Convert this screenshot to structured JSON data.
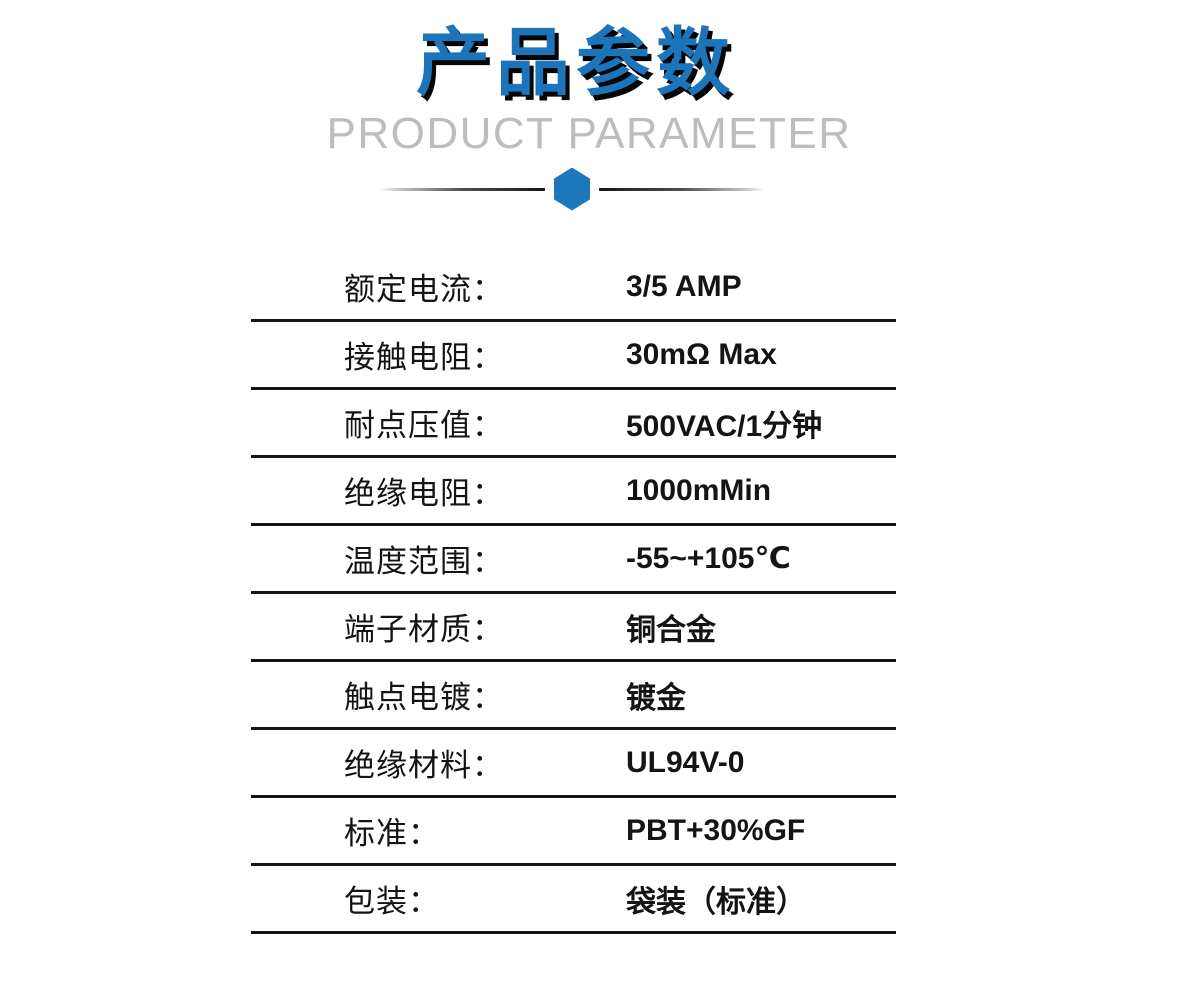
{
  "page": {
    "title_cn": "产品参数",
    "title_en": "PRODUCT PARAMETER"
  },
  "colors": {
    "accent_blue": "#1c74ba",
    "title_shadow": "#050505",
    "subtitle_gray": "#bdbdbd",
    "table_line": "#141414",
    "text": "#141414"
  },
  "icons": {
    "divider_hexagon": "blue pointy-top hexagon between fading rule lines"
  },
  "table": {
    "rows": [
      {
        "label": "额定电流：",
        "value": "3/5 AMP"
      },
      {
        "label": "接触电阻：",
        "value": "30mΩ Max"
      },
      {
        "label": "耐点压值：",
        "value": "500VAC/1分钟"
      },
      {
        "label": "绝缘电阻：",
        "value": "1000mMin"
      },
      {
        "label": "温度范围：",
        "value": "-55~+105℃"
      },
      {
        "label": "端子材质：",
        "value": "铜合金"
      },
      {
        "label": "触点电镀：",
        "value": "镀金"
      },
      {
        "label": "绝缘材料：",
        "value": "UL94V-0"
      },
      {
        "label": "标准：",
        "value": "PBT+30%GF"
      },
      {
        "label": "包装：",
        "value": "袋装（标准）"
      }
    ]
  }
}
